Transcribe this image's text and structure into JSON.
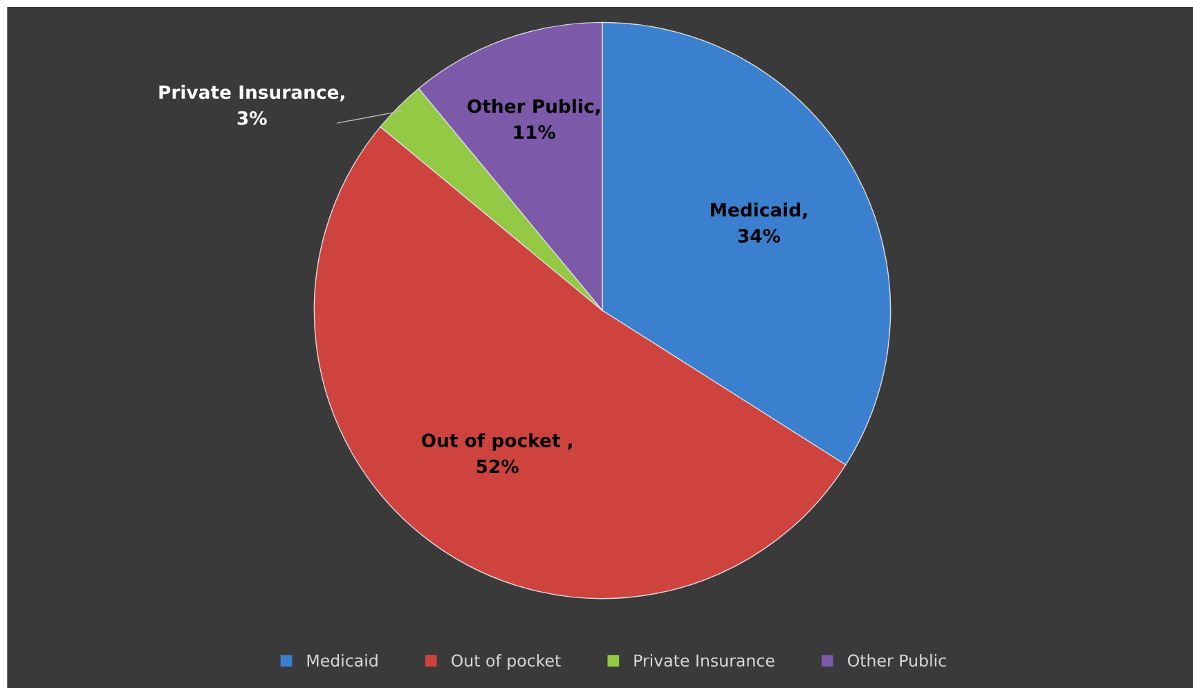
{
  "chart_data": {
    "type": "pie",
    "categories": [
      "Medicaid",
      "Out of pocket",
      "Private Insurance",
      "Other Public"
    ],
    "values": [
      34,
      52,
      3,
      11
    ],
    "colors": [
      "#3b7fcf",
      "#cf433f",
      "#93c944",
      "#7d59a9"
    ],
    "value_labels": [
      "Medicaid,\n34%",
      "Out of pocket ,\n52%",
      "Private Insurance,\n3%",
      "Other Public,\n11%"
    ],
    "legend": "bottom"
  }
}
